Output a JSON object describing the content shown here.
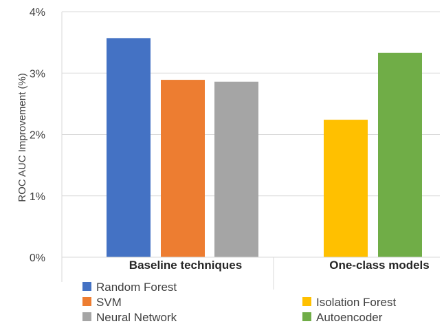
{
  "chart_data": {
    "type": "bar",
    "ylabel": "ROC AUC Improvement (%)",
    "ylim": [
      0,
      4
    ],
    "yticks": [
      0,
      1,
      2,
      3,
      4
    ],
    "ytick_labels": [
      "0%",
      "1%",
      "2%",
      "3%",
      "4%"
    ],
    "grid": true,
    "groups": [
      {
        "label": "Baseline techniques",
        "bars": [
          {
            "name": "Random Forest",
            "value": 3.57,
            "color": "#4472C4"
          },
          {
            "name": "SVM",
            "value": 2.89,
            "color": "#ED7D31"
          },
          {
            "name": "Neural Network",
            "value": 2.86,
            "color": "#A5A5A5"
          }
        ]
      },
      {
        "label": "One-class models",
        "bars": [
          {
            "name": "Isolation Forest",
            "value": 2.24,
            "color": "#FFC000"
          },
          {
            "name": "Autoencoder",
            "value": 3.33,
            "color": "#70AD47"
          }
        ]
      }
    ],
    "legend": {
      "placement": "bottom",
      "entries": [
        {
          "name": "Random Forest",
          "color": "#4472C4"
        },
        {
          "name": "SVM",
          "color": "#ED7D31"
        },
        {
          "name": "Neural Network",
          "color": "#A5A5A5"
        },
        {
          "name": "Isolation Forest",
          "color": "#FFC000"
        },
        {
          "name": "Autoencoder",
          "color": "#70AD47"
        }
      ]
    }
  }
}
